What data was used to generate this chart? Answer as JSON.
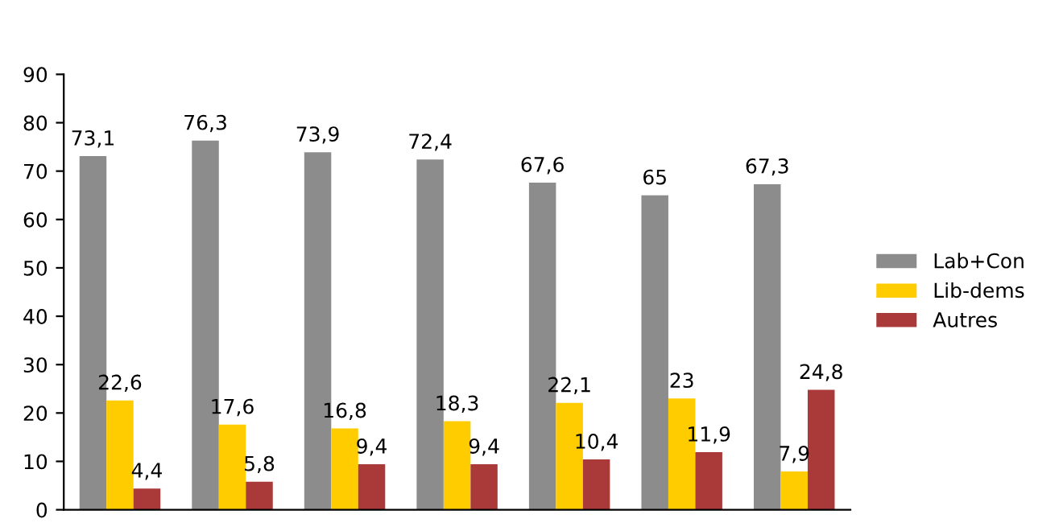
{
  "chart_data": {
    "type": "bar",
    "categories": [
      null,
      null,
      null,
      null,
      null,
      null,
      null
    ],
    "series": [
      {
        "name": "Lab+Con",
        "color": "#8c8c8c",
        "values": [
          73.1,
          76.3,
          73.9,
          72.4,
          67.6,
          65,
          67.3
        ],
        "value_labels": [
          "73,1",
          "76,3",
          "73,9",
          "72,4",
          "67,6",
          "65",
          "67,3"
        ]
      },
      {
        "name": "Lib-dems",
        "color": "#ffcc00",
        "values": [
          22.6,
          17.6,
          16.8,
          18.3,
          22.1,
          23,
          7.9
        ],
        "value_labels": [
          "22,6",
          "17,6",
          "16,8",
          "18,3",
          "22,1",
          "23",
          "7,9"
        ]
      },
      {
        "name": "Autres",
        "color": "#aa3a3a",
        "values": [
          4.4,
          5.8,
          9.4,
          9.4,
          10.4,
          11.9,
          24.8
        ],
        "value_labels": [
          "4,4",
          "5,8",
          "9,4",
          "9,4",
          "10,4",
          "11,9",
          "24,8"
        ]
      }
    ],
    "ylim": [
      0,
      90
    ],
    "yticks": [
      0,
      10,
      20,
      30,
      40,
      50,
      60,
      70,
      80,
      90
    ],
    "grid": false,
    "legend": "right"
  }
}
